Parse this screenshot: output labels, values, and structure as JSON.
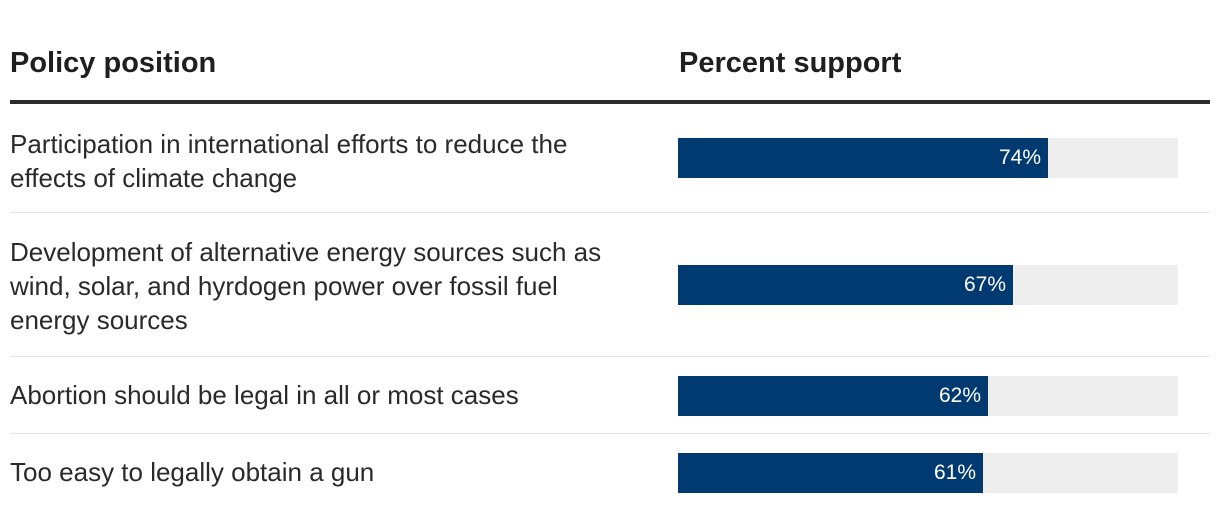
{
  "header": {
    "policy_col": "Policy position",
    "percent_col": "Percent support"
  },
  "colors": {
    "bar_fill": "#003a70",
    "bar_track": "#eeeeee",
    "header_rule": "#2b2b2b"
  },
  "chart_data": {
    "type": "bar",
    "orientation": "horizontal",
    "categories": [
      "Participation in international efforts to reduce the effects of climate change",
      "Development of alternative energy sources such as wind, solar, and hyrdogen power over fossil fuel energy sources",
      "Abortion should be legal in all or most cases",
      "Too easy to legally obtain a gun"
    ],
    "values": [
      74,
      67,
      62,
      61
    ],
    "value_labels": [
      "74%",
      "67%",
      "62%",
      "61%"
    ],
    "xlim": [
      0,
      100
    ],
    "grid": false
  }
}
